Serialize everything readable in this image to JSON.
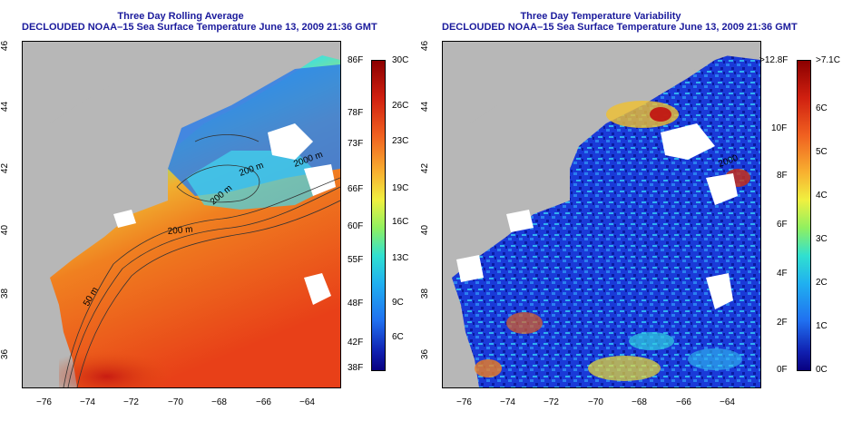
{
  "left_panel": {
    "title1": "Three Day Rolling Average",
    "title2": "DECLOUDED NOAA–15 Sea Surface Temperature June 13, 2009 21:36 GMT",
    "contour_labels": [
      "200 m",
      "200 m",
      "200 m",
      "50 m",
      "2000 m"
    ],
    "colorbar": {
      "left_labels": [
        "86F",
        "78F",
        "73F",
        "66F",
        "60F",
        "55F",
        "48F",
        "42F",
        "38F"
      ],
      "right_labels": [
        "30C",
        "26C",
        "23C",
        "19C",
        "16C",
        "13C",
        "9C",
        "6C"
      ]
    }
  },
  "right_panel": {
    "title1": "Three Day Temperature Variability",
    "title2": "DECLOUDED NOAA–15 Sea Surface Temperature June 13, 2009 21:36 GMT",
    "contour_labels": [
      "2000"
    ],
    "colorbar": {
      "left_labels": [
        ">12.8F",
        "10F",
        "8F",
        "6F",
        "4F",
        "2F",
        "0F"
      ],
      "right_labels": [
        ">7.1C",
        "6C",
        "5C",
        "4C",
        "3C",
        "2C",
        "1C",
        "0C"
      ]
    }
  },
  "axes": {
    "x_ticks": [
      "−76",
      "−74",
      "−72",
      "−70",
      "−68",
      "−66",
      "−64"
    ],
    "y_ticks": [
      "46",
      "44",
      "42",
      "40",
      "38",
      "36"
    ]
  },
  "colors": {
    "land": "#b7b7b7",
    "title": "#1a1a9c"
  }
}
